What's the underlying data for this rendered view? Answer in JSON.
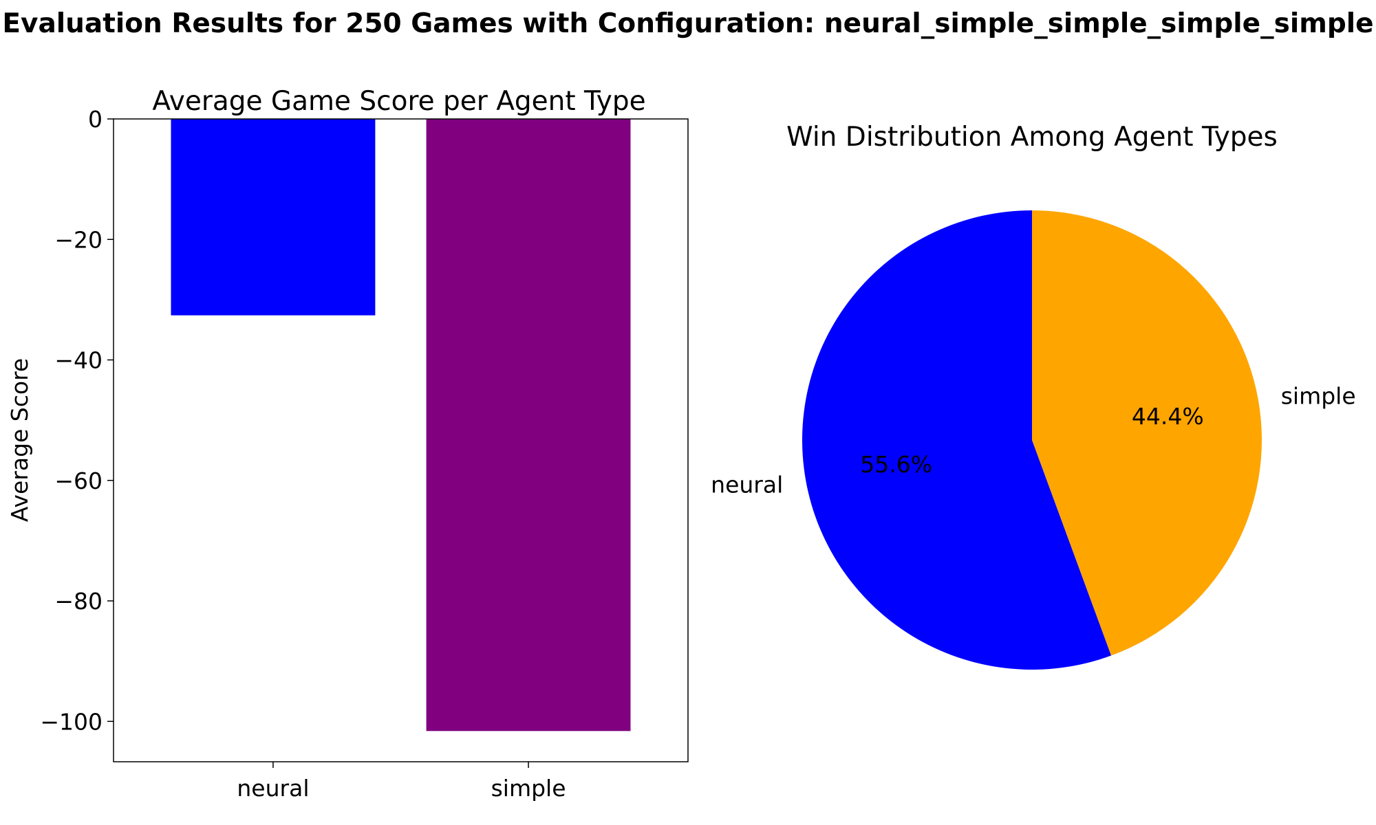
{
  "suptitle": "Evaluation Results for 250 Games with Configuration: neural_simple_simple_simple_simple",
  "chart_data": [
    {
      "type": "bar",
      "title": "Average Game Score per Agent Type",
      "xlabel": "",
      "ylabel": "Average Score",
      "categories": [
        "neural",
        "simple"
      ],
      "values": [
        -32.6,
        -101.6
      ],
      "colors": [
        "#0000ff",
        "#800080"
      ],
      "ylim": [
        -106.7,
        0
      ],
      "yticks": [
        0,
        -20,
        -40,
        -60,
        -80,
        -100
      ],
      "ytick_labels": [
        "0",
        "−20",
        "−40",
        "−60",
        "−80",
        "−100"
      ],
      "grid": false
    },
    {
      "type": "pie",
      "title": "Win Distribution Among Agent Types",
      "labels": [
        "neural",
        "simple"
      ],
      "values": [
        55.6,
        44.4
      ],
      "pct_labels": [
        "55.6%",
        "44.4%"
      ],
      "colors": [
        "#0000ff",
        "#ffa500"
      ],
      "startangle": 90,
      "direction": "clockwise-from-top for simple, neural follows"
    }
  ]
}
